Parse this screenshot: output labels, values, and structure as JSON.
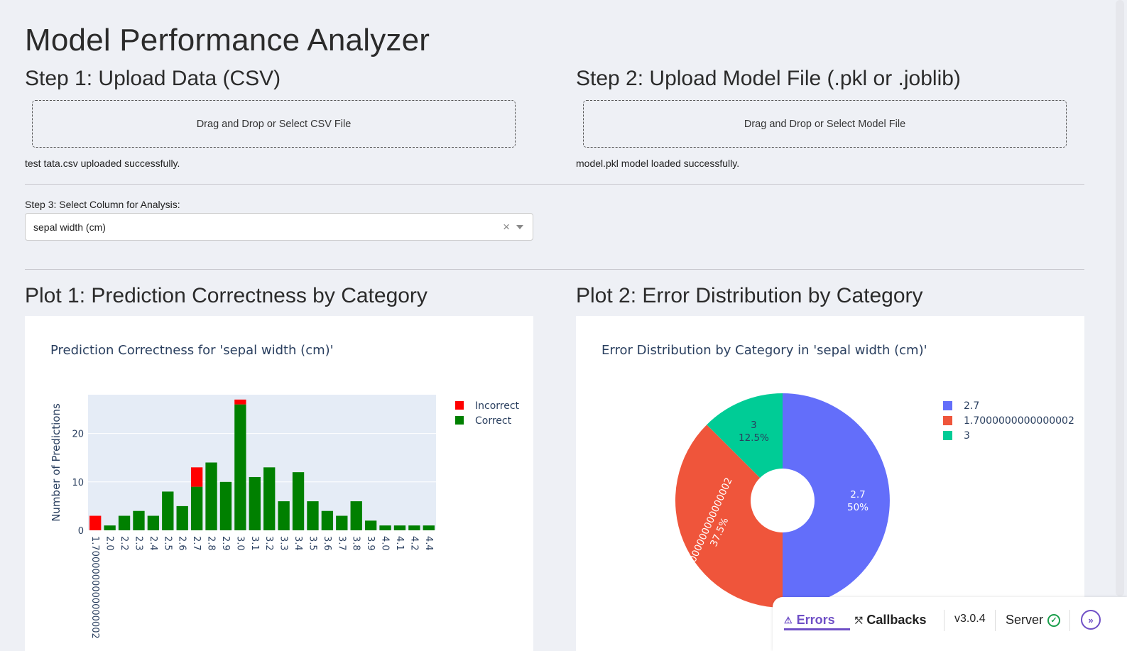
{
  "page_title": "Model Performance Analyzer",
  "step1": {
    "title": "Step 1: Upload Data (CSV)",
    "upload_label": "Drag and Drop or Select CSV File",
    "status": "test tata.csv uploaded successfully."
  },
  "step2": {
    "title": "Step 2: Upload Model File (.pkl or .joblib)",
    "upload_label": "Drag and Drop or Select Model File",
    "status": "model.pkl model loaded successfully."
  },
  "step3": {
    "label": "Step 3: Select Column for Analysis:",
    "selected_value": "sepal width (cm)",
    "clear_glyph": "×"
  },
  "plot1": {
    "heading": "Plot 1: Prediction Correctness by Category"
  },
  "plot2": {
    "heading": "Plot 2: Error Distribution by Category"
  },
  "chart_data": [
    {
      "type": "bar",
      "title": "Prediction Correctness for 'sepal width (cm)'",
      "xlabel": "",
      "ylabel": "Number of Predictions",
      "ylim": [
        0,
        28
      ],
      "yticks": [
        0,
        10,
        20
      ],
      "barmode": "stack",
      "categories": [
        "1.7000000000000002",
        "2.0",
        "2.2",
        "2.3",
        "2.4",
        "2.5",
        "2.6",
        "2.7",
        "2.8",
        "2.9",
        "3.0",
        "3.1",
        "3.2",
        "3.3",
        "3.4",
        "3.5",
        "3.6",
        "3.7",
        "3.8",
        "3.9",
        "4.0",
        "4.1",
        "4.2",
        "4.4"
      ],
      "series": [
        {
          "name": "Correct",
          "color": "#008000",
          "values": [
            0,
            1,
            3,
            4,
            3,
            8,
            5,
            9,
            14,
            10,
            26,
            11,
            13,
            6,
            12,
            6,
            4,
            3,
            6,
            2,
            1,
            1,
            1,
            1
          ]
        },
        {
          "name": "Incorrect",
          "color": "#ff0000",
          "values": [
            3,
            0,
            0,
            0,
            0,
            0,
            0,
            4,
            0,
            0,
            1,
            0,
            0,
            0,
            0,
            0,
            0,
            0,
            0,
            0,
            0,
            0,
            0,
            0
          ]
        }
      ],
      "legend_order": [
        "Incorrect",
        "Correct"
      ],
      "legend_position": "top-right",
      "grid": true,
      "plot_bg": "#e5ecf6"
    },
    {
      "type": "pie",
      "title": "Error Distribution by Category in 'sepal width (cm)'",
      "hole": true,
      "slices": [
        {
          "label": "2.7",
          "value": 4,
          "percent": "50%",
          "color": "#636efa"
        },
        {
          "label": "1.7000000000000002",
          "value": 3,
          "percent": "37.5%",
          "color": "#ef553b"
        },
        {
          "label": "3",
          "value": 1,
          "percent": "12.5%",
          "color": "#00cc96"
        }
      ],
      "legend_position": "top-right"
    }
  ],
  "debug_bar": {
    "errors_label": "Errors",
    "callbacks_label": "Callbacks",
    "version": "v3.0.4",
    "server_label": "Server",
    "accent": "#6f4fc6",
    "server_ok_color": "#1a9e4b"
  }
}
